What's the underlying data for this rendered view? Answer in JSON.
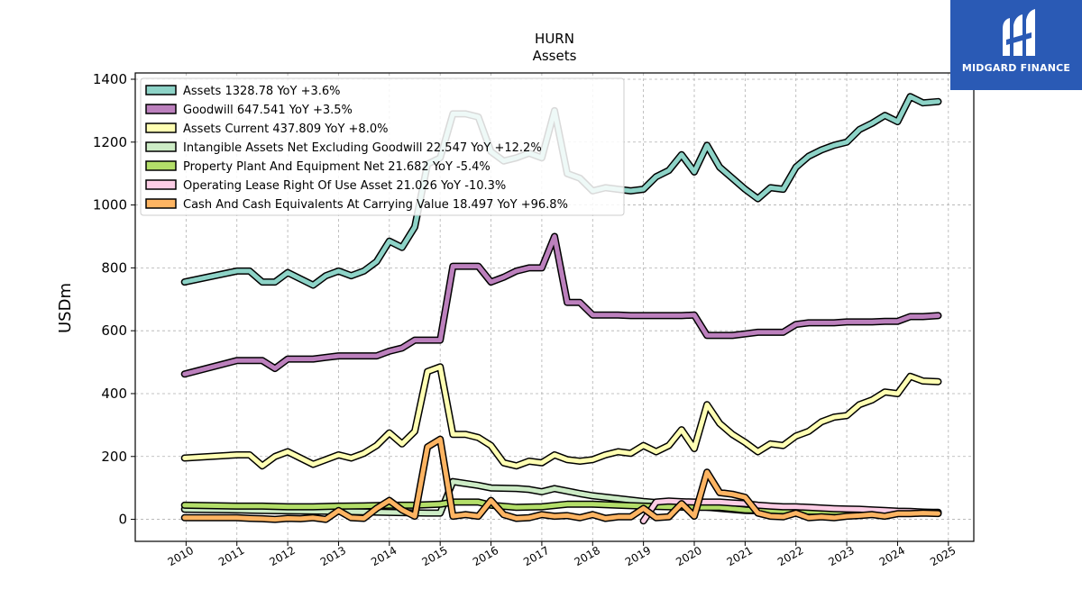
{
  "chart_data": {
    "type": "line",
    "title": "HURN",
    "subtitle": "Assets",
    "ylabel": "USDm",
    "xlabel": "",
    "ylim": [
      -70,
      1420
    ],
    "xlim": [
      2009.0,
      2025.5
    ],
    "yticks": [
      0,
      200,
      400,
      600,
      800,
      1000,
      1200,
      1400
    ],
    "xticks": [
      2010,
      2011,
      2012,
      2013,
      2014,
      2015,
      2016,
      2017,
      2018,
      2019,
      2020,
      2021,
      2022,
      2023,
      2024,
      2025
    ],
    "grid": true,
    "legend_position": "top-left",
    "series": [
      {
        "name": "Assets  1328.78 YoY +3.6%",
        "color": "#8dd3c7",
        "x": [
          2009.97,
          2011.0,
          2011.25,
          2011.5,
          2011.75,
          2012.0,
          2012.25,
          2012.5,
          2012.75,
          2013.0,
          2013.25,
          2013.5,
          2013.75,
          2014.0,
          2014.25,
          2014.5,
          2014.75,
          2015.0,
          2015.25,
          2015.5,
          2015.75,
          2016.0,
          2016.25,
          2016.5,
          2016.75,
          2017.0,
          2017.25,
          2017.5,
          2017.75,
          2018.0,
          2018.25,
          2018.5,
          2018.75,
          2019.0,
          2019.25,
          2019.5,
          2019.75,
          2020.0,
          2020.25,
          2020.5,
          2020.75,
          2021.0,
          2021.25,
          2021.5,
          2021.75,
          2022.0,
          2022.25,
          2022.5,
          2022.75,
          2023.0,
          2023.25,
          2023.5,
          2023.75,
          2024.0,
          2024.25,
          2024.5,
          2024.8
        ],
        "y": [
          755,
          790,
          790,
          755,
          755,
          785,
          765,
          745,
          775,
          790,
          775,
          790,
          820,
          885,
          865,
          930,
          1130,
          1150,
          1290,
          1290,
          1280,
          1170,
          1140,
          1150,
          1165,
          1150,
          1300,
          1100,
          1085,
          1045,
          1055,
          1050,
          1045,
          1050,
          1090,
          1110,
          1160,
          1105,
          1190,
          1120,
          1085,
          1050,
          1020,
          1055,
          1050,
          1120,
          1155,
          1175,
          1190,
          1200,
          1240,
          1260,
          1285,
          1265,
          1345,
          1325,
          1329
        ]
      },
      {
        "name": "Goodwill  647.541 YoY +3.5%",
        "color": "#bc80bd",
        "x": [
          2009.97,
          2011.0,
          2011.25,
          2011.5,
          2011.75,
          2012.0,
          2012.25,
          2012.5,
          2012.75,
          2013.0,
          2013.25,
          2013.5,
          2013.75,
          2014.0,
          2014.25,
          2014.5,
          2014.75,
          2015.0,
          2015.25,
          2015.5,
          2015.75,
          2016.0,
          2016.25,
          2016.5,
          2016.75,
          2017.0,
          2017.25,
          2017.5,
          2017.75,
          2018.0,
          2018.25,
          2018.5,
          2018.75,
          2019.0,
          2019.25,
          2019.5,
          2019.75,
          2020.0,
          2020.25,
          2020.5,
          2020.75,
          2021.0,
          2021.25,
          2021.5,
          2021.75,
          2022.0,
          2022.25,
          2022.5,
          2022.75,
          2023.0,
          2023.25,
          2023.5,
          2023.75,
          2024.0,
          2024.25,
          2024.5,
          2024.8
        ],
        "y": [
          462,
          505,
          505,
          505,
          480,
          510,
          510,
          510,
          515,
          520,
          520,
          520,
          520,
          535,
          545,
          570,
          570,
          570,
          805,
          805,
          805,
          755,
          770,
          790,
          800,
          800,
          900,
          690,
          690,
          650,
          650,
          650,
          648,
          648,
          648,
          648,
          648,
          650,
          585,
          585,
          585,
          590,
          595,
          595,
          595,
          620,
          625,
          625,
          625,
          628,
          628,
          628,
          630,
          630,
          645,
          645,
          648
        ]
      },
      {
        "name": "Assets Current  437.809 YoY +8.0%",
        "color": "#ffffb3",
        "x": [
          2009.97,
          2011.0,
          2011.25,
          2011.5,
          2011.75,
          2012.0,
          2012.25,
          2012.5,
          2012.75,
          2013.0,
          2013.25,
          2013.5,
          2013.75,
          2014.0,
          2014.25,
          2014.5,
          2014.75,
          2015.0,
          2015.25,
          2015.5,
          2015.75,
          2016.0,
          2016.25,
          2016.5,
          2016.75,
          2017.0,
          2017.25,
          2017.5,
          2017.75,
          2018.0,
          2018.25,
          2018.5,
          2018.75,
          2019.0,
          2019.25,
          2019.5,
          2019.75,
          2020.0,
          2020.25,
          2020.5,
          2020.75,
          2021.0,
          2021.25,
          2021.5,
          2021.75,
          2022.0,
          2022.25,
          2022.5,
          2022.75,
          2023.0,
          2023.25,
          2023.5,
          2023.75,
          2024.0,
          2024.25,
          2024.5,
          2024.8
        ],
        "y": [
          195,
          205,
          205,
          170,
          200,
          215,
          195,
          175,
          190,
          205,
          195,
          210,
          235,
          275,
          240,
          280,
          470,
          485,
          270,
          270,
          260,
          235,
          180,
          170,
          185,
          180,
          205,
          190,
          185,
          190,
          205,
          215,
          210,
          235,
          215,
          235,
          285,
          225,
          365,
          305,
          270,
          245,
          215,
          240,
          235,
          265,
          280,
          310,
          325,
          330,
          365,
          380,
          405,
          400,
          455,
          440,
          438
        ]
      },
      {
        "name": "Intangible Assets Net Excluding Goodwill  22.547 YoY +12.2%",
        "color": "#ccebc5",
        "x": [
          2009.97,
          2011.0,
          2011.5,
          2012.0,
          2013.0,
          2014.0,
          2014.75,
          2015.0,
          2015.25,
          2015.75,
          2016.0,
          2016.5,
          2016.75,
          2017.0,
          2017.25,
          2017.75,
          2018.0,
          2019.0,
          2019.5,
          2020.0,
          2020.5,
          2021.0,
          2022.0,
          2023.0,
          2024.0,
          2024.8
        ],
        "y": [
          32,
          30,
          28,
          27,
          25,
          22,
          20,
          20,
          120,
          108,
          100,
          98,
          95,
          88,
          98,
          82,
          75,
          57,
          50,
          42,
          35,
          28,
          25,
          24,
          21,
          22.5
        ]
      },
      {
        "name": "Property Plant And Equipment Net  21.682 YoY -5.4%",
        "color": "#b3de69",
        "x": [
          2009.97,
          2011.0,
          2011.5,
          2012.0,
          2012.5,
          2013.0,
          2013.5,
          2014.0,
          2014.5,
          2015.0,
          2015.25,
          2015.75,
          2016.0,
          2016.5,
          2017.0,
          2017.5,
          2018.0,
          2018.5,
          2019.0,
          2019.5,
          2020.0,
          2020.5,
          2021.0,
          2021.5,
          2022.0,
          2022.5,
          2023.0,
          2023.5,
          2024.0,
          2024.5,
          2024.8
        ],
        "y": [
          45,
          42,
          42,
          40,
          40,
          42,
          43,
          45,
          45,
          48,
          55,
          55,
          45,
          38,
          40,
          48,
          48,
          45,
          42,
          40,
          38,
          38,
          30,
          28,
          26,
          25,
          24,
          23,
          22,
          22,
          21.7
        ]
      },
      {
        "name": "Operating Lease Right Of Use Asset  21.026 YoY -10.3%",
        "color": "#fccde5",
        "x": [
          2019.0,
          2019.25,
          2019.5,
          2019.75,
          2020.0,
          2020.25,
          2020.5,
          2020.75,
          2021.0,
          2021.25,
          2021.5,
          2021.75,
          2022.0,
          2022.25,
          2022.5,
          2022.75,
          2023.0,
          2023.25,
          2023.5,
          2023.75,
          2024.0,
          2024.25,
          2024.5,
          2024.8
        ],
        "y": [
          -5,
          55,
          58,
          56,
          55,
          55,
          55,
          52,
          50,
          45,
          42,
          40,
          40,
          38,
          36,
          34,
          33,
          32,
          30,
          28,
          26,
          25,
          23,
          21
        ]
      },
      {
        "name": "Cash And Cash Equivalents At Carrying Value  18.497 YoY +96.8%",
        "color": "#fdb462",
        "x": [
          2009.97,
          2011.0,
          2011.25,
          2011.5,
          2011.75,
          2012.0,
          2012.25,
          2012.5,
          2012.75,
          2013.0,
          2013.25,
          2013.5,
          2013.75,
          2014.0,
          2014.25,
          2014.5,
          2014.75,
          2015.0,
          2015.25,
          2015.5,
          2015.75,
          2016.0,
          2016.25,
          2016.5,
          2016.75,
          2017.0,
          2017.25,
          2017.5,
          2017.75,
          2018.0,
          2018.25,
          2018.5,
          2018.75,
          2019.0,
          2019.25,
          2019.5,
          2019.75,
          2020.0,
          2020.25,
          2020.5,
          2020.75,
          2021.0,
          2021.25,
          2021.5,
          2021.75,
          2022.0,
          2022.25,
          2022.5,
          2022.75,
          2023.0,
          2023.25,
          2023.5,
          2023.75,
          2024.0,
          2024.25,
          2024.5,
          2024.8
        ],
        "y": [
          5,
          5,
          3,
          2,
          0,
          3,
          2,
          5,
          0,
          28,
          5,
          3,
          35,
          60,
          30,
          10,
          230,
          255,
          10,
          15,
          10,
          60,
          15,
          3,
          5,
          15,
          10,
          12,
          5,
          15,
          3,
          8,
          8,
          35,
          5,
          8,
          50,
          10,
          150,
          85,
          80,
          70,
          20,
          10,
          8,
          20,
          5,
          8,
          5,
          10,
          12,
          15,
          10,
          18,
          18,
          20,
          18.5
        ]
      }
    ]
  },
  "brand": {
    "name": "MIDGARD FINANCE",
    "color": "#2a5ab5"
  }
}
